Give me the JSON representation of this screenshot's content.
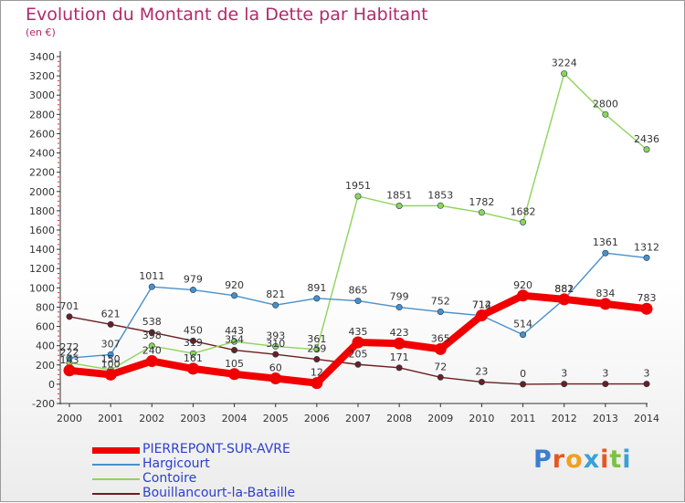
{
  "title": "Evolution du Montant de la Dette par Habitant",
  "unit": "(en €)",
  "logo": {
    "text": "Proxiti",
    "letter_colors": [
      "#3a7fd0",
      "#e8561f",
      "#f0a020",
      "#3aa0d8",
      "#e8561f",
      "#7cc240",
      "#3aa0d8"
    ]
  },
  "chart_data": {
    "type": "line",
    "x": [
      2000,
      2001,
      2002,
      2003,
      2004,
      2005,
      2006,
      2007,
      2008,
      2009,
      2010,
      2011,
      2012,
      2013,
      2014
    ],
    "ylim": [
      -200,
      3400
    ],
    "yticks": [
      -200,
      0,
      200,
      400,
      600,
      800,
      1000,
      1200,
      1400,
      1600,
      1800,
      2000,
      2200,
      2400,
      2600,
      2800,
      3000,
      3200,
      3400
    ],
    "grid": false,
    "legend_position": "bottom-left",
    "series": [
      {
        "name": "Bouillancourt-la-Bataille",
        "color": "#6b1f1f",
        "thick": false,
        "values": [
          701,
          621,
          538,
          450,
          354,
          310,
          259,
          205,
          171,
          72,
          23,
          0,
          3,
          3,
          3
        ]
      },
      {
        "name": "Contoire",
        "color": "#8ed45a",
        "thick": false,
        "values": [
          222,
          150,
          398,
          319,
          443,
          393,
          361,
          1951,
          1851,
          1853,
          1782,
          1682,
          3224,
          2800,
          2436
        ]
      },
      {
        "name": "Hargicourt",
        "color": "#4a90c8",
        "thick": false,
        "values": [
          272,
          307,
          1011,
          979,
          920,
          821,
          891,
          865,
          799,
          752,
          712,
          514,
          882,
          1361,
          1312
        ]
      },
      {
        "name": "PIERREPONT-SUR-AVRE",
        "color": "#f00000",
        "thick": true,
        "values": [
          143,
          100,
          240,
          161,
          105,
          60,
          12,
          435,
          423,
          365,
          714,
          920,
          881,
          834,
          783
        ]
      }
    ]
  },
  "legend_order": [
    3,
    2,
    1,
    0
  ]
}
